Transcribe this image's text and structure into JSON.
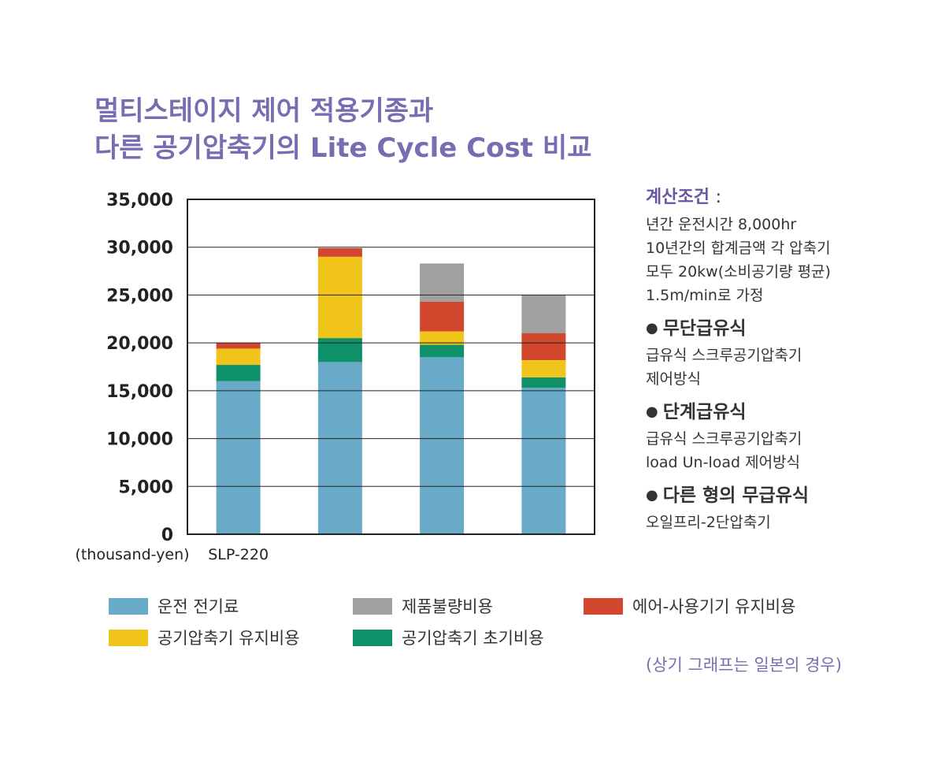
{
  "title": {
    "line1": "멀티스테이지 제어 적용기종과",
    "line2": "다른 공기압축기의 Lite Cycle Cost 비교"
  },
  "colors": {
    "title": "#7a6cb0",
    "electricity": "#6aaac9",
    "compressor_maintenance": "#f0c419",
    "compressor_initial": "#0e9068",
    "defect": "#a0a09e",
    "air_equipment": "#d4472f"
  },
  "chart_data": {
    "type": "bar",
    "stacked": true,
    "categories": [
      "SLP-220",
      "",
      "",
      ""
    ],
    "series": [
      {
        "name": "운전 전기료",
        "key": "electricity",
        "values": [
          16000,
          18000,
          18500,
          15300
        ]
      },
      {
        "name": "공기압축기 초기비용",
        "key": "compressor_initial",
        "values": [
          1700,
          2500,
          1300,
          1100
        ]
      },
      {
        "name": "공기압축기 유지비용",
        "key": "compressor_maintenance",
        "values": [
          1700,
          8500,
          1400,
          1800
        ]
      },
      {
        "name": "에어-사용기기 유지비용",
        "key": "air_equipment",
        "values": [
          600,
          900,
          3100,
          2800
        ]
      },
      {
        "name": "제품불량비용",
        "key": "defect",
        "values": [
          0,
          0,
          4000,
          4000
        ]
      }
    ],
    "ylim": [
      0,
      35000
    ],
    "yticks": [
      "0",
      "5,000",
      "10,000",
      "15,000",
      "20,000",
      "25,000",
      "30,000",
      "35,000"
    ],
    "ylabel": "(thousand-yen)",
    "grid": true
  },
  "conditions": {
    "title": "계산조건",
    "colon": ":",
    "lines": [
      "년간 운전시간 8,000hr",
      "10년간의 합계금액 각 압축기",
      "모두 20kw(소비공기량 평균)",
      "1.5m/min로 가정"
    ],
    "methods": [
      {
        "bullet": "●",
        "name": "무단급유식",
        "desc": [
          "급유식 스크루공기압축기",
          "제어방식"
        ]
      },
      {
        "bullet": "●",
        "name": "단계급유식",
        "desc": [
          "급유식 스크루공기압축기",
          "load Un-load 제어방식"
        ]
      },
      {
        "bullet": "●",
        "name": "다른 형의 무급유식",
        "desc": [
          "오일프리-2단압축기"
        ]
      }
    ]
  },
  "legend": [
    {
      "label": "운전 전기료",
      "key": "electricity"
    },
    {
      "label": "제품불량비용",
      "key": "defect"
    },
    {
      "label": "에어-사용기기 유지비용",
      "key": "air_equipment"
    },
    {
      "label": "공기압축기 유지비용",
      "key": "compressor_maintenance"
    },
    {
      "label": "공기압축기 초기비용",
      "key": "compressor_initial"
    }
  ],
  "note": "(상기 그래프는 일본의 경우)"
}
